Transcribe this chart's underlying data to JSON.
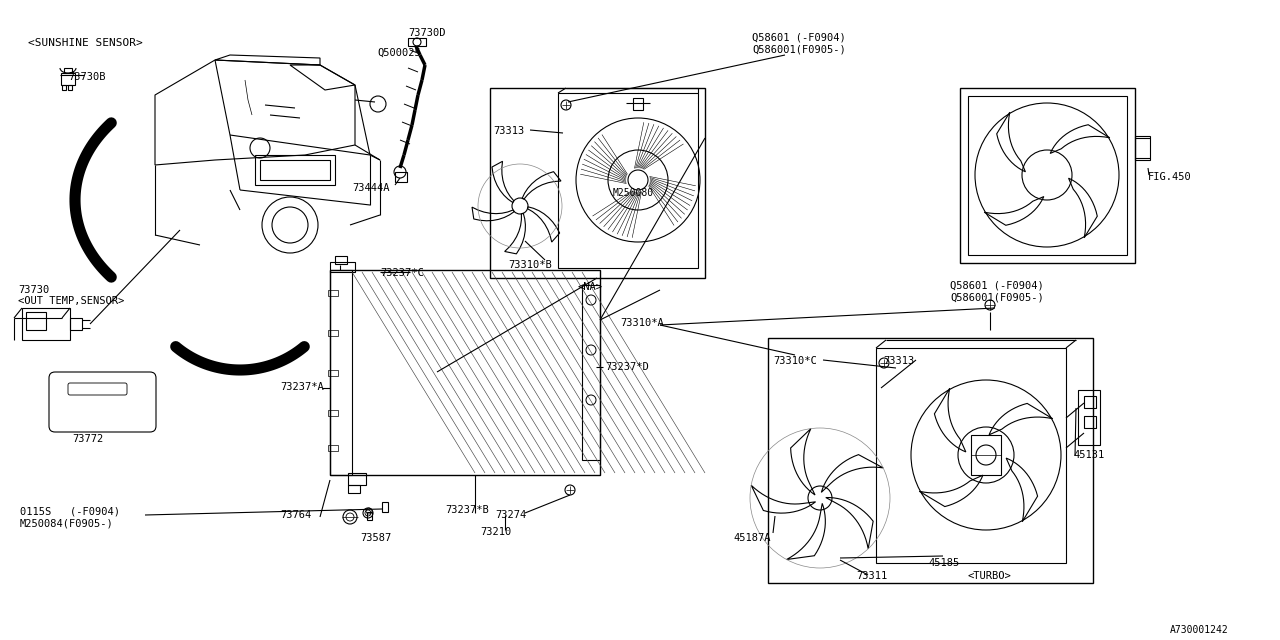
{
  "bg_color": "#ffffff",
  "line_color": "#000000",
  "fig_id": "A730001242",
  "parts": {
    "sunshine_sensor_label": "<SUNSHINE SENSOR>",
    "part_73730B": "73730B",
    "part_73730D": "73730D",
    "part_Q500025": "Q500025",
    "part_73444A": "73444A",
    "part_73730": "73730",
    "out_temp_label": "<OUT TEMP,SENSOR>",
    "part_73772": "73772",
    "part_73237C": "73237*C",
    "part_73237A": "73237*A",
    "part_73237D": "73237*D",
    "part_73237B": "73237*B",
    "part_73764": "73764",
    "part_0115S": "0115S   (-F0904)",
    "part_M250084": "M250084(F0905-)",
    "part_73587": "73587",
    "part_73210": "73210",
    "part_73274": "73274",
    "part_73313_na": "73313",
    "part_73310B": "73310*B",
    "part_M250080": "M250080",
    "part_Q58601_top": "Q58601 (-F0904)",
    "part_Q586001_top": "Q586001(F0905-)",
    "part_FIG450": "FIG.450",
    "part_Q58601_bot": "Q58601 (-F0904)",
    "part_Q586001_bot": "Q586001(F0905-)",
    "part_73310A": "73310*A",
    "part_73310C": "73310*C",
    "part_73313_turbo": "73313",
    "part_45187A": "45187A",
    "part_45185": "45185",
    "part_45131": "45131",
    "part_73311": "73311",
    "turbo_label": "<TURBO>",
    "na_label": "<NA>"
  }
}
